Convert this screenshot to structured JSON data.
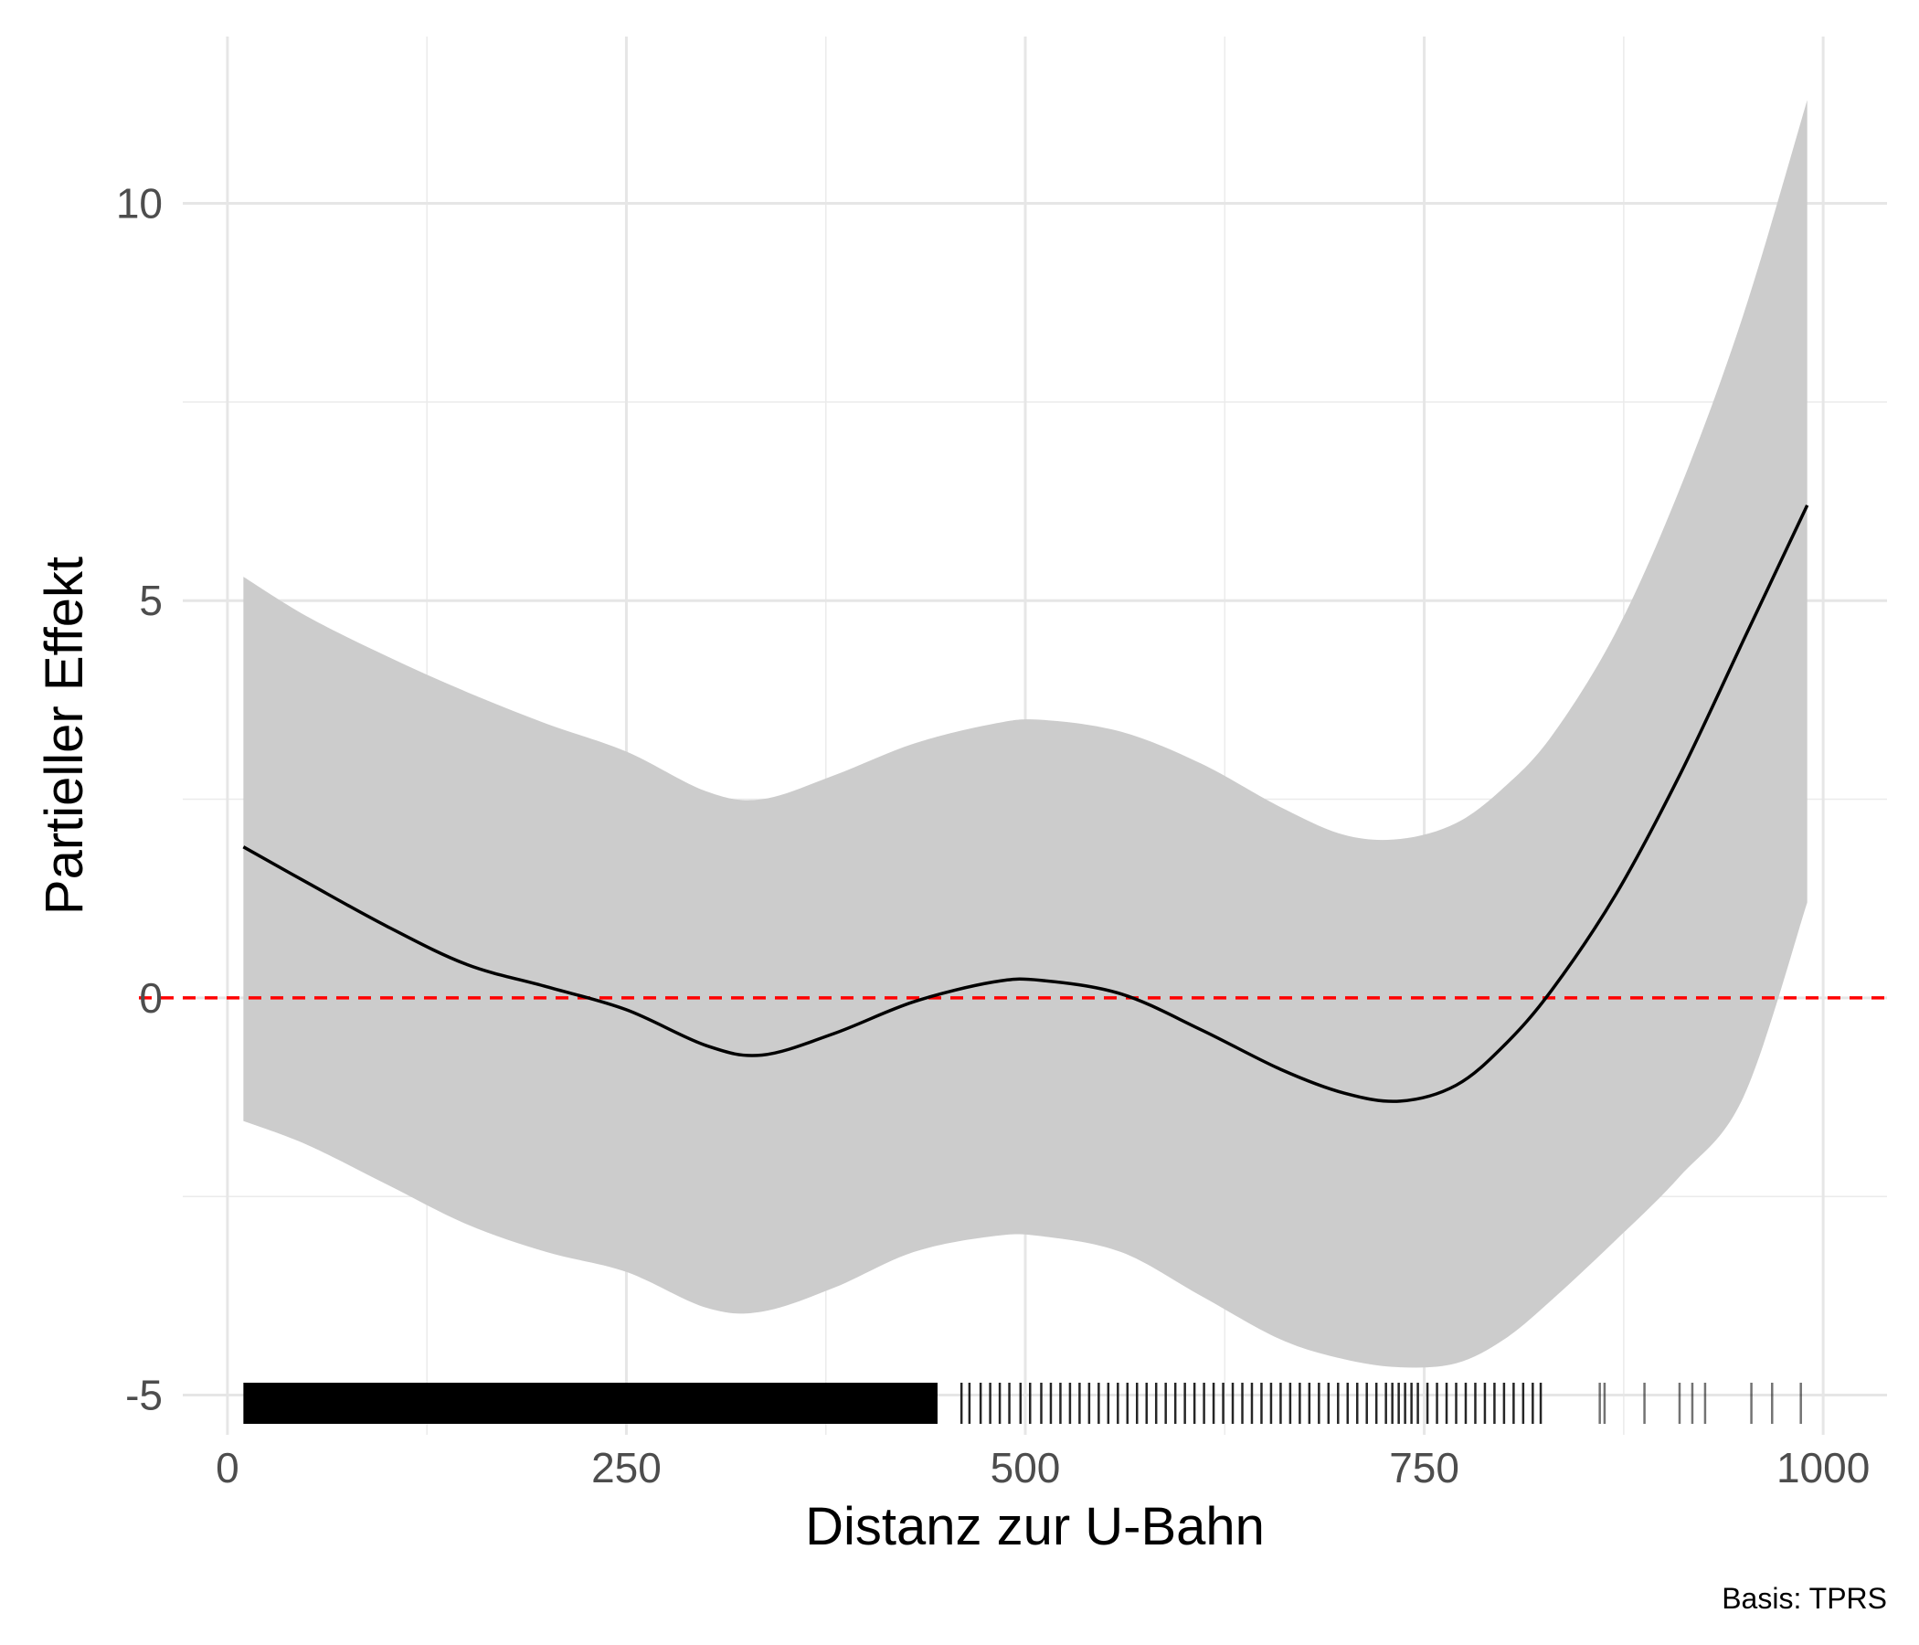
{
  "chart_data": {
    "type": "line",
    "xlabel": "Distanz zur U-Bahn",
    "ylabel": "Partieller Effekt",
    "caption": "Basis: TPRS",
    "xlim": [
      -28,
      1040
    ],
    "ylim": [
      -5.5,
      12.1
    ],
    "x_ticks": [
      0,
      250,
      500,
      750,
      1000
    ],
    "x_tick_labels": [
      "0",
      "250",
      "500",
      "750",
      "1000"
    ],
    "y_ticks": [
      -5,
      0,
      5,
      10
    ],
    "y_tick_labels": [
      "-5",
      "0",
      "5",
      "10"
    ],
    "grid": true,
    "reference_line": {
      "y": 0,
      "style": "dashed",
      "color": "#ff0000"
    },
    "series": [
      {
        "role": "estimate",
        "color": "#000000",
        "x": [
          10,
          50,
          100,
          150,
          200,
          250,
          300,
          335,
          380,
          430,
          480,
          510,
          560,
          610,
          660,
          700,
          735,
          770,
          800,
          830,
          870,
          910,
          950,
          990
        ],
        "y": [
          1.9,
          1.45,
          0.9,
          0.42,
          0.14,
          -0.15,
          -0.6,
          -0.72,
          -0.45,
          -0.05,
          0.2,
          0.22,
          0.05,
          -0.4,
          -0.9,
          -1.2,
          -1.3,
          -1.1,
          -0.6,
          0.1,
          1.3,
          2.8,
          4.5,
          6.2
        ]
      },
      {
        "role": "confidence-band",
        "color": "#cccccc",
        "x": [
          10,
          50,
          100,
          150,
          200,
          250,
          300,
          335,
          380,
          430,
          480,
          510,
          560,
          610,
          660,
          700,
          735,
          770,
          800,
          830,
          870,
          910,
          950,
          990
        ],
        "upper": [
          5.3,
          4.8,
          4.3,
          3.85,
          3.45,
          3.1,
          2.6,
          2.5,
          2.8,
          3.2,
          3.45,
          3.5,
          3.35,
          2.95,
          2.4,
          2.05,
          2.0,
          2.2,
          2.65,
          3.3,
          4.6,
          6.4,
          8.6,
          11.3
        ],
        "lower": [
          -1.55,
          -1.85,
          -2.35,
          -2.85,
          -3.2,
          -3.45,
          -3.9,
          -3.95,
          -3.65,
          -3.2,
          -3.0,
          -3.0,
          -3.2,
          -3.75,
          -4.3,
          -4.55,
          -4.65,
          -4.6,
          -4.3,
          -3.8,
          -3.05,
          -2.25,
          -1.25,
          1.2
        ]
      }
    ],
    "rug": {
      "color": "#000000",
      "dense_range": [
        10,
        445
      ],
      "x": [
        460,
        465,
        472,
        478,
        484,
        490,
        497,
        503,
        510,
        516,
        522,
        528,
        534,
        540,
        546,
        552,
        558,
        564,
        570,
        576,
        582,
        588,
        594,
        600,
        606,
        612,
        618,
        624,
        630,
        636,
        642,
        648,
        654,
        660,
        666,
        672,
        678,
        684,
        690,
        696,
        702,
        708,
        714,
        720,
        726,
        730,
        734,
        738,
        742,
        746,
        752,
        758,
        764,
        770,
        776,
        782,
        788,
        794,
        800,
        806,
        812,
        818,
        823,
        860,
        863,
        888,
        910,
        918,
        926,
        955,
        968,
        986
      ]
    }
  }
}
